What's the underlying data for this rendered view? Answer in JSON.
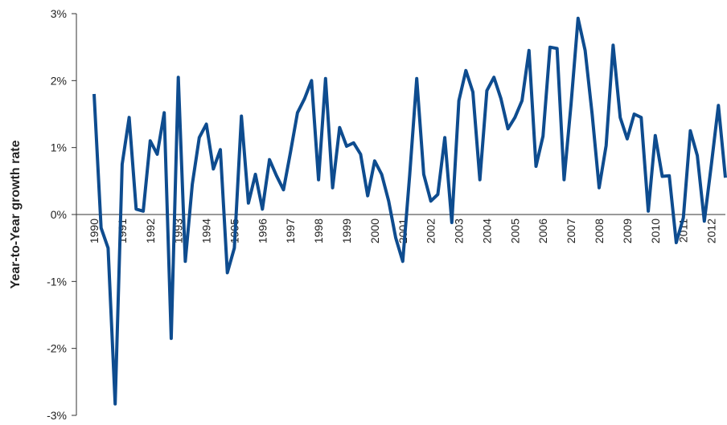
{
  "chart_data": {
    "type": "line",
    "y_label": "Year-to-Year growth rate",
    "categories": [
      "1990",
      null,
      null,
      null,
      "1991",
      null,
      null,
      null,
      "1992",
      null,
      null,
      null,
      "1993",
      null,
      null,
      null,
      "1994",
      null,
      null,
      null,
      "1995",
      null,
      null,
      null,
      "1996",
      null,
      null,
      null,
      "1997",
      null,
      null,
      null,
      "1998",
      null,
      null,
      null,
      "1999",
      null,
      null,
      null,
      "2000",
      null,
      null,
      null,
      "2001",
      null,
      null,
      null,
      "2002",
      null,
      null,
      null,
      "2003",
      null,
      null,
      null,
      "2004",
      null,
      null,
      null,
      "2005",
      null,
      null,
      null,
      "2006",
      null,
      null,
      null,
      "2007",
      null,
      null,
      null,
      "2008",
      null,
      null,
      null,
      "2009",
      null,
      null,
      null,
      "2010",
      null,
      null,
      null,
      "2011",
      null,
      null,
      null,
      "2012",
      null,
      null
    ],
    "series": [
      {
        "color": "#0e4c8f",
        "values": [
          1.8,
          -0.2,
          -0.5,
          -2.83,
          0.75,
          1.45,
          0.08,
          0.05,
          1.1,
          0.9,
          1.52,
          -1.85,
          2.05,
          -0.7,
          0.45,
          1.15,
          1.35,
          0.68,
          0.97,
          -0.87,
          -0.5,
          1.47,
          0.17,
          0.6,
          0.08,
          0.82,
          0.58,
          0.37,
          0.93,
          1.52,
          1.73,
          2.0,
          0.52,
          2.03,
          0.4,
          1.3,
          1.02,
          1.07,
          0.9,
          0.28,
          0.8,
          0.6,
          0.2,
          -0.35,
          -0.7,
          0.6,
          2.03,
          0.6,
          0.2,
          0.3,
          1.15,
          -0.12,
          1.7,
          2.15,
          1.83,
          0.52,
          1.85,
          2.05,
          1.73,
          1.28,
          1.45,
          1.7,
          2.45,
          0.72,
          1.17,
          2.5,
          2.48,
          0.52,
          1.65,
          2.93,
          2.45,
          1.5,
          0.4,
          1.03,
          2.53,
          1.45,
          1.13,
          1.5,
          1.45,
          0.05,
          1.18,
          0.57,
          0.58,
          -0.42,
          -0.05,
          1.25,
          0.88,
          -0.1,
          0.75,
          1.63,
          0.55
        ]
      }
    ],
    "ylim": [
      -3,
      3
    ],
    "yticks": [
      {
        "value": -3,
        "label": "-3%"
      },
      {
        "value": -2,
        "label": "-2%"
      },
      {
        "value": -1,
        "label": "-1%"
      },
      {
        "value": 0,
        "label": "0%"
      },
      {
        "value": 1,
        "label": "1%"
      },
      {
        "value": 2,
        "label": "2%"
      },
      {
        "value": 3,
        "label": "3%"
      }
    ]
  }
}
